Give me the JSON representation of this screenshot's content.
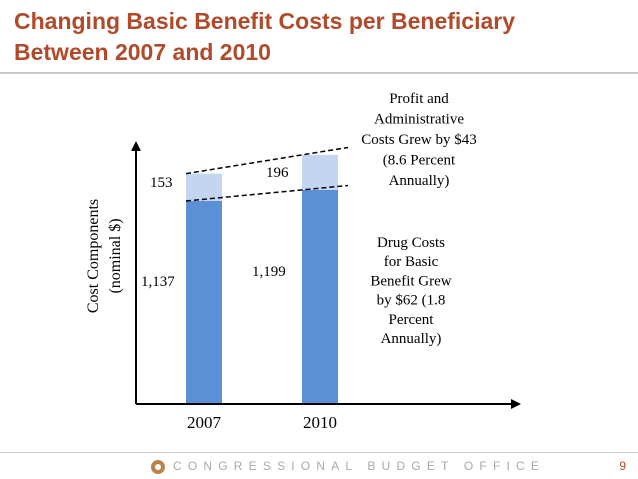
{
  "title": "Changing Basic Benefit Costs per Beneficiary Between 2007 and 2010",
  "footer": {
    "org": "CONGRESSIONAL BUDGET OFFICE",
    "page": "9"
  },
  "chart_data": {
    "type": "bar",
    "stacked": true,
    "categories": [
      "2007",
      "2010"
    ],
    "series": [
      {
        "name": "Drug Costs for Basic Benefit",
        "values": [
          1137,
          1199
        ],
        "color": "#5b8fd6"
      },
      {
        "name": "Profit and Administrative Costs",
        "values": [
          153,
          196
        ],
        "color": "#c3d5f0"
      }
    ],
    "ylabel": "Cost Components (nominal $)",
    "ylabel_lines": [
      "Cost Components",
      "(nominal $)"
    ],
    "ylim": [
      0,
      1700
    ],
    "annotations": [
      {
        "text": "Profit and Administrative Costs Grew by $43 (8.6 Percent Annually)",
        "lines": [
          "Profit and",
          "Administrative",
          "Costs Grew by $43",
          "(8.6 Percent",
          "Annually)"
        ]
      },
      {
        "text": "Drug Costs for Basic Benefit Grew by $62 (1.8 Percent Annually)",
        "lines": [
          "Drug Costs",
          "for Basic",
          "Benefit Grew",
          "by $62 (1.8",
          "Percent",
          "Annually)"
        ]
      }
    ]
  }
}
